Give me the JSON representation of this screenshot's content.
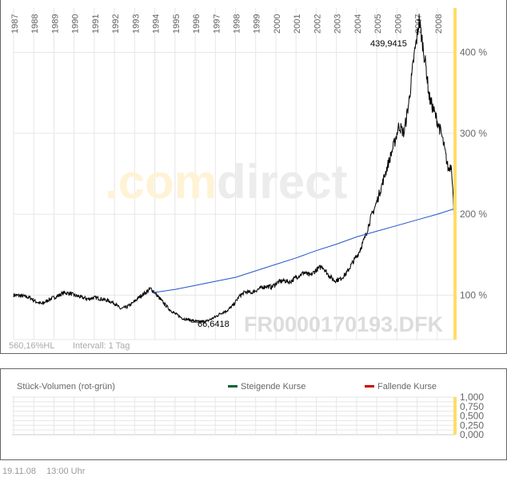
{
  "chart_data": {
    "type": "line",
    "symbol": "FR0000170193.DFK",
    "watermark": ".comdirect",
    "x_ticks": [
      "1987",
      "1988",
      "1989",
      "1990",
      "1991",
      "1992",
      "1993",
      "1994",
      "1995",
      "1996",
      "1997",
      "1998",
      "1999",
      "2000",
      "2001",
      "2002",
      "2003",
      "2004",
      "2005",
      "2006",
      "2007",
      "2008"
    ],
    "y_ticks": [
      "100 %",
      "200 %",
      "300 %",
      "400 %"
    ],
    "y_tick_values": [
      100,
      200,
      300,
      400
    ],
    "xlim": [
      1987.0,
      2008.88
    ],
    "ylim": [
      45,
      455
    ],
    "high_label": "439,9415",
    "low_label": "66,6418",
    "info_range": "560,16%HL",
    "info_interval": "Intervall: 1 Tag",
    "series": [
      {
        "name": "price",
        "color": "#000000",
        "points": [
          [
            1987.0,
            100
          ],
          [
            1987.4,
            99
          ],
          [
            1987.8,
            97
          ],
          [
            1988.1,
            92
          ],
          [
            1988.4,
            89
          ],
          [
            1988.8,
            95
          ],
          [
            1989.2,
            99
          ],
          [
            1989.5,
            103
          ],
          [
            1989.8,
            102
          ],
          [
            1990.0,
            100
          ],
          [
            1990.4,
            97
          ],
          [
            1990.7,
            95
          ],
          [
            1991.0,
            97
          ],
          [
            1991.4,
            95
          ],
          [
            1991.7,
            93
          ],
          [
            1992.0,
            90
          ],
          [
            1992.3,
            83
          ],
          [
            1992.6,
            85
          ],
          [
            1992.9,
            90
          ],
          [
            1993.3,
            99
          ],
          [
            1993.6,
            104
          ],
          [
            1993.8,
            108
          ],
          [
            1994.0,
            103
          ],
          [
            1994.3,
            94
          ],
          [
            1994.7,
            83
          ],
          [
            1995.0,
            77
          ],
          [
            1995.4,
            71
          ],
          [
            1995.8,
            69
          ],
          [
            1996.2,
            67
          ],
          [
            1996.6,
            68
          ],
          [
            1997.0,
            73
          ],
          [
            1997.3,
            78
          ],
          [
            1997.6,
            81
          ],
          [
            1997.9,
            88
          ],
          [
            1998.2,
            99
          ],
          [
            1998.5,
            104
          ],
          [
            1998.8,
            103
          ],
          [
            1999.1,
            107
          ],
          [
            1999.5,
            111
          ],
          [
            1999.8,
            110
          ],
          [
            2000.1,
            116
          ],
          [
            2000.4,
            118
          ],
          [
            2000.7,
            116
          ],
          [
            2001.0,
            122
          ],
          [
            2001.4,
            128
          ],
          [
            2001.7,
            124
          ],
          [
            2002.0,
            131
          ],
          [
            2002.3,
            136
          ],
          [
            2002.6,
            125
          ],
          [
            2002.9,
            118
          ],
          [
            2003.2,
            120
          ],
          [
            2003.5,
            127
          ],
          [
            2003.8,
            140
          ],
          [
            2004.1,
            152
          ],
          [
            2004.4,
            170
          ],
          [
            2004.7,
            195
          ],
          [
            2005.0,
            215
          ],
          [
            2005.3,
            240
          ],
          [
            2005.6,
            265
          ],
          [
            2005.9,
            290
          ],
          [
            2006.1,
            310
          ],
          [
            2006.35,
            300
          ],
          [
            2006.6,
            340
          ],
          [
            2006.85,
            395
          ],
          [
            2007.0,
            420
          ],
          [
            2007.1,
            440
          ],
          [
            2007.25,
            415
          ],
          [
            2007.45,
            380
          ],
          [
            2007.6,
            345
          ],
          [
            2007.8,
            330
          ],
          [
            2008.0,
            315
          ],
          [
            2008.2,
            300
          ],
          [
            2008.4,
            275
          ],
          [
            2008.55,
            255
          ],
          [
            2008.7,
            262
          ],
          [
            2008.8,
            215
          ],
          [
            2008.88,
            168
          ]
        ]
      },
      {
        "name": "moving-average",
        "color": "#2255cc",
        "points": [
          [
            1993.9,
            103
          ],
          [
            1995,
            107
          ],
          [
            1996,
            112
          ],
          [
            1997,
            117
          ],
          [
            1998,
            122
          ],
          [
            1999,
            130
          ],
          [
            2000,
            138
          ],
          [
            2001,
            146
          ],
          [
            2002,
            155
          ],
          [
            2003,
            163
          ],
          [
            2004,
            172
          ],
          [
            2005,
            179
          ],
          [
            2006,
            186
          ],
          [
            2007,
            193
          ],
          [
            2008,
            200
          ],
          [
            2008.88,
            207
          ]
        ]
      }
    ]
  },
  "volume": {
    "title": "Stück-Volumen (rot-grün)",
    "legend_up": "Steigende Kurse",
    "legend_down": "Fallende Kurse",
    "up_color": "#006633",
    "down_color": "#cc0000",
    "y_ticks": [
      "1,000",
      "0,750",
      "0,500",
      "0,250",
      "0,000"
    ]
  },
  "footer": {
    "date": "19.11.08",
    "time": "13:00 Uhr"
  }
}
